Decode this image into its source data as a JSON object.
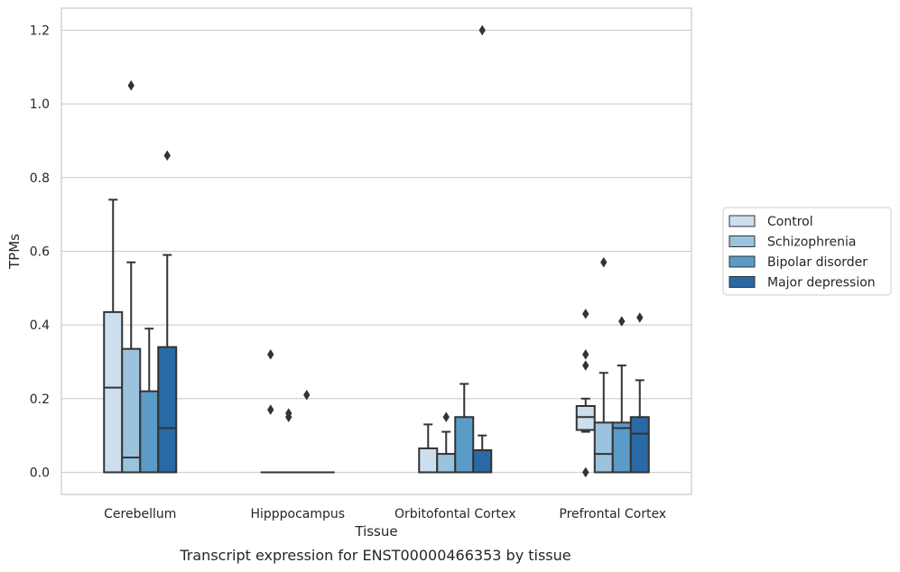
{
  "caption": "Transcript expression for ENST00000466353 by tissue",
  "chart_data": {
    "type": "box",
    "xlabel": "Tissue",
    "ylabel": "TPMs",
    "ylim": [
      -0.06,
      1.26
    ],
    "yticks": [
      0.0,
      0.2,
      0.4,
      0.6,
      0.8,
      1.0,
      1.2
    ],
    "grid": "horizontal",
    "legend_position": "right",
    "categories": [
      "Cerebellum",
      "Hipppocampus",
      "Orbitofontal Cortex",
      "Prefrontal Cortex"
    ],
    "series": [
      {
        "name": "Control",
        "color": "#cddeee",
        "boxes": [
          {
            "q1": 0.0,
            "median": 0.23,
            "q3": 0.435,
            "whisker_low": 0.0,
            "whisker_high": 0.74,
            "outliers": []
          },
          {
            "q1": 0.0,
            "median": 0.0,
            "q3": 0.0,
            "whisker_low": 0.0,
            "whisker_high": 0.0,
            "outliers": [
              0.32,
              0.17
            ]
          },
          {
            "q1": 0.0,
            "median": 0.0,
            "q3": 0.065,
            "whisker_low": 0.0,
            "whisker_high": 0.13,
            "outliers": []
          },
          {
            "q1": 0.115,
            "median": 0.15,
            "q3": 0.18,
            "whisker_low": 0.11,
            "whisker_high": 0.2,
            "outliers": [
              0.43,
              0.32,
              0.29,
              0.0
            ]
          }
        ]
      },
      {
        "name": "Schizophrenia",
        "color": "#9cc3dd",
        "boxes": [
          {
            "q1": 0.0,
            "median": 0.04,
            "q3": 0.335,
            "whisker_low": 0.0,
            "whisker_high": 0.57,
            "outliers": [
              1.05
            ]
          },
          {
            "q1": 0.0,
            "median": 0.0,
            "q3": 0.0,
            "whisker_low": 0.0,
            "whisker_high": 0.0,
            "outliers": [
              0.16,
              0.15
            ]
          },
          {
            "q1": 0.0,
            "median": 0.0,
            "q3": 0.05,
            "whisker_low": 0.0,
            "whisker_high": 0.11,
            "outliers": [
              0.15
            ]
          },
          {
            "q1": 0.0,
            "median": 0.05,
            "q3": 0.135,
            "whisker_low": 0.0,
            "whisker_high": 0.27,
            "outliers": [
              0.57
            ]
          }
        ]
      },
      {
        "name": "Bipolar disorder",
        "color": "#5a9bc8",
        "boxes": [
          {
            "q1": 0.0,
            "median": 0.0,
            "q3": 0.22,
            "whisker_low": 0.0,
            "whisker_high": 0.39,
            "outliers": []
          },
          {
            "q1": 0.0,
            "median": 0.0,
            "q3": 0.0,
            "whisker_low": 0.0,
            "whisker_high": 0.0,
            "outliers": [
              0.21
            ]
          },
          {
            "q1": 0.0,
            "median": 0.0,
            "q3": 0.15,
            "whisker_low": 0.0,
            "whisker_high": 0.24,
            "outliers": []
          },
          {
            "q1": 0.0,
            "median": 0.12,
            "q3": 0.135,
            "whisker_low": 0.0,
            "whisker_high": 0.29,
            "outliers": [
              0.41
            ]
          }
        ]
      },
      {
        "name": "Major depression",
        "color": "#2869a6",
        "boxes": [
          {
            "q1": 0.0,
            "median": 0.12,
            "q3": 0.34,
            "whisker_low": 0.0,
            "whisker_high": 0.59,
            "outliers": [
              0.86
            ]
          },
          {
            "q1": 0.0,
            "median": 0.0,
            "q3": 0.0,
            "whisker_low": 0.0,
            "whisker_high": 0.0,
            "outliers": []
          },
          {
            "q1": 0.0,
            "median": 0.0,
            "q3": 0.06,
            "whisker_low": 0.0,
            "whisker_high": 0.1,
            "outliers": [
              1.2
            ]
          },
          {
            "q1": 0.0,
            "median": 0.105,
            "q3": 0.15,
            "whisker_low": 0.0,
            "whisker_high": 0.25,
            "outliers": [
              0.42
            ]
          }
        ]
      }
    ]
  }
}
